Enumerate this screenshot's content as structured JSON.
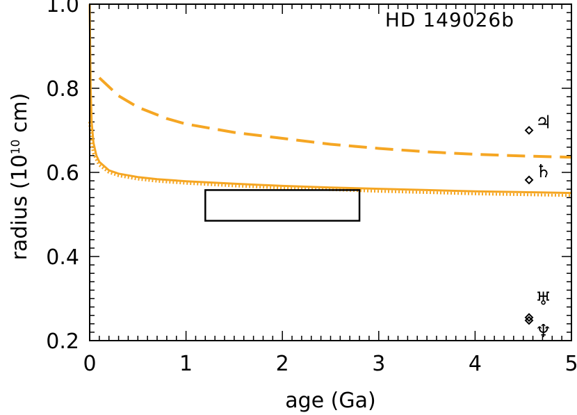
{
  "chart_data": {
    "type": "line",
    "title": "HD 149026b",
    "xlabel": "age (Ga)",
    "ylabel_main": "radius (10",
    "ylabel_exp": "10",
    "ylabel_tail": " cm)",
    "xlim": [
      0,
      5
    ],
    "ylim": [
      0.2,
      1.0
    ],
    "xticks": [
      0,
      1,
      2,
      3,
      4,
      5
    ],
    "yticks": [
      0.2,
      0.4,
      0.6,
      0.8,
      1.0
    ],
    "xtick_labels": [
      "0",
      "1",
      "2",
      "3",
      "4",
      "5"
    ],
    "ytick_labels": [
      "0.2",
      "0.4",
      "0.6",
      "0.8",
      "1.0"
    ],
    "color": "#f5a623",
    "series": [
      {
        "style": "dashed",
        "x": [
          0.1,
          0.3,
          0.5,
          0.8,
          1.0,
          1.5,
          2.0,
          2.5,
          3.0,
          3.5,
          4.0,
          4.5,
          5.0
        ],
        "y": [
          0.825,
          0.782,
          0.755,
          0.728,
          0.715,
          0.695,
          0.681,
          0.667,
          0.657,
          0.649,
          0.643,
          0.639,
          0.636
        ]
      },
      {
        "style": "solid",
        "x": [
          0.0,
          0.01,
          0.02,
          0.04,
          0.07,
          0.1,
          0.2,
          0.3,
          0.5,
          0.7,
          1.0,
          1.5,
          2.0,
          2.5,
          3.0,
          3.5,
          4.0,
          4.5,
          5.0
        ],
        "y": [
          1.0,
          0.8,
          0.72,
          0.67,
          0.64,
          0.625,
          0.605,
          0.597,
          0.589,
          0.584,
          0.579,
          0.573,
          0.568,
          0.564,
          0.561,
          0.558,
          0.555,
          0.553,
          0.551
        ]
      },
      {
        "style": "dotted",
        "x": [
          0.0,
          0.01,
          0.02,
          0.04,
          0.07,
          0.1,
          0.2,
          0.3,
          0.5,
          0.7,
          1.0,
          1.5,
          2.0,
          2.5,
          3.0,
          3.5,
          4.0,
          4.5,
          5.0
        ],
        "y": [
          0.72,
          0.69,
          0.665,
          0.645,
          0.63,
          0.617,
          0.6,
          0.592,
          0.584,
          0.579,
          0.574,
          0.568,
          0.563,
          0.559,
          0.555,
          0.552,
          0.549,
          0.547,
          0.545
        ]
      }
    ],
    "observation_box": {
      "x": [
        1.2,
        2.8
      ],
      "y": [
        0.485,
        0.558
      ]
    },
    "planets": [
      {
        "symbol": "♃",
        "name": "Jupiter",
        "x": 4.56,
        "y": 0.7
      },
      {
        "symbol": "♄",
        "name": "Saturn",
        "x": 4.56,
        "y": 0.582
      },
      {
        "symbol": "♅",
        "name": "Uranus",
        "x": 4.56,
        "y": 0.255
      },
      {
        "symbol": "♆",
        "name": "Neptune",
        "x": 4.56,
        "y": 0.248
      }
    ]
  }
}
